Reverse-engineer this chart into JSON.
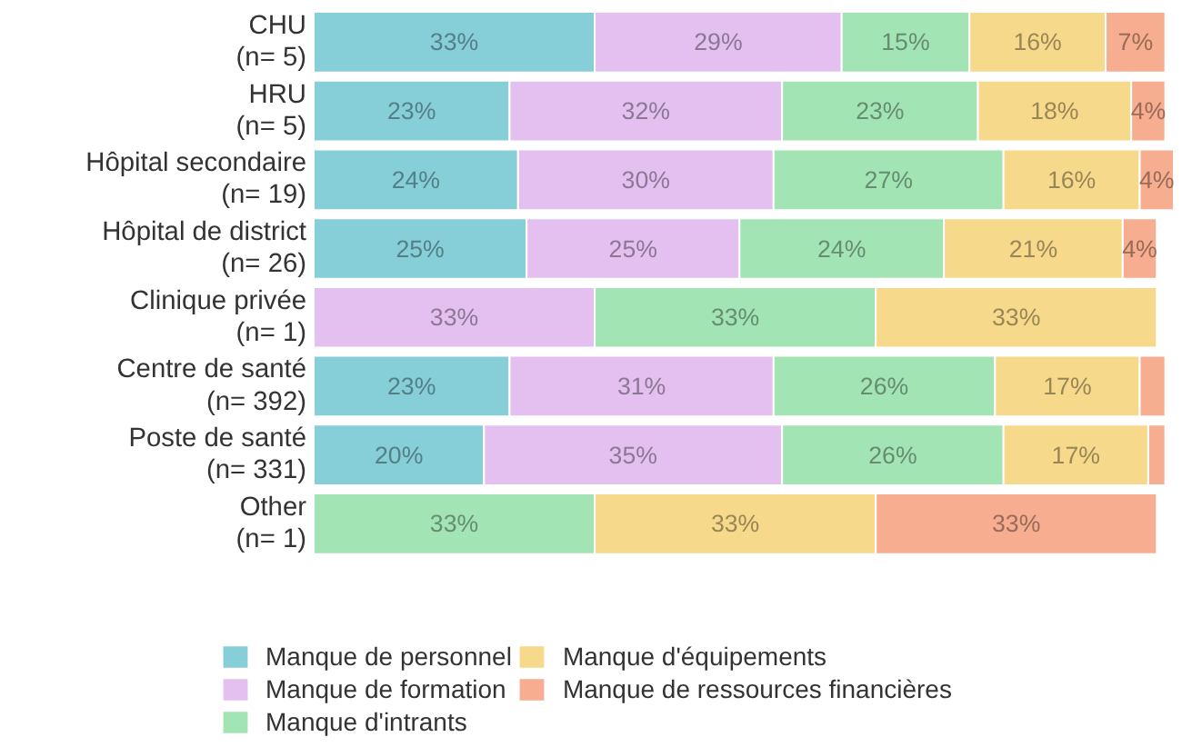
{
  "chart_data": {
    "type": "bar",
    "orientation": "horizontal",
    "stacked": true,
    "legend": "bottom",
    "grid": false,
    "tick_labels": "y",
    "categories": [
      "CHU\n(n= 5)",
      "HRU\n(n= 5)",
      "Hôpital secondaire\n(n= 19)",
      "Hôpital de district\n(n= 26)",
      "Clinique privée\n(n= 1)",
      "Centre de santé\n(n= 392)",
      "Poste de santé\n(n= 331)",
      "Other\n(n= 1)"
    ],
    "series": [
      {
        "name": "Manque de personnel",
        "color": "#86cfd8",
        "values": [
          33,
          23,
          24,
          25,
          null,
          23,
          20,
          null
        ],
        "value_labels": [
          "33%",
          "23%",
          "24%",
          "25%",
          null,
          "23%",
          "20%",
          null
        ]
      },
      {
        "name": "Manque de formation",
        "color": "#e3c0f0",
        "values": [
          29,
          32,
          30,
          25,
          33,
          31,
          35,
          null
        ],
        "value_labels": [
          "29%",
          "32%",
          "30%",
          "25%",
          "33%",
          "31%",
          "35%",
          null
        ]
      },
      {
        "name": "Manque d'intrants",
        "color": "#a3e4b5",
        "values": [
          15,
          23,
          27,
          24,
          33,
          26,
          26,
          33
        ],
        "value_labels": [
          "15%",
          "23%",
          "27%",
          "24%",
          "33%",
          "26%",
          "26%",
          "33%"
        ]
      },
      {
        "name": "Manque d'équipements",
        "color": "#f7d98b",
        "values": [
          16,
          18,
          16,
          21,
          33,
          17,
          17,
          33
        ],
        "value_labels": [
          "16%",
          "18%",
          "16%",
          "21%",
          "33%",
          "17%",
          "17%",
          "33%"
        ]
      },
      {
        "name": "Manque de ressources financières",
        "color": "#f7ad8f",
        "values": [
          7,
          4,
          4,
          4,
          null,
          3,
          2,
          33
        ],
        "value_labels": [
          "7%",
          "4%",
          "4%",
          "4%",
          null,
          null,
          null,
          "33%"
        ]
      }
    ]
  }
}
